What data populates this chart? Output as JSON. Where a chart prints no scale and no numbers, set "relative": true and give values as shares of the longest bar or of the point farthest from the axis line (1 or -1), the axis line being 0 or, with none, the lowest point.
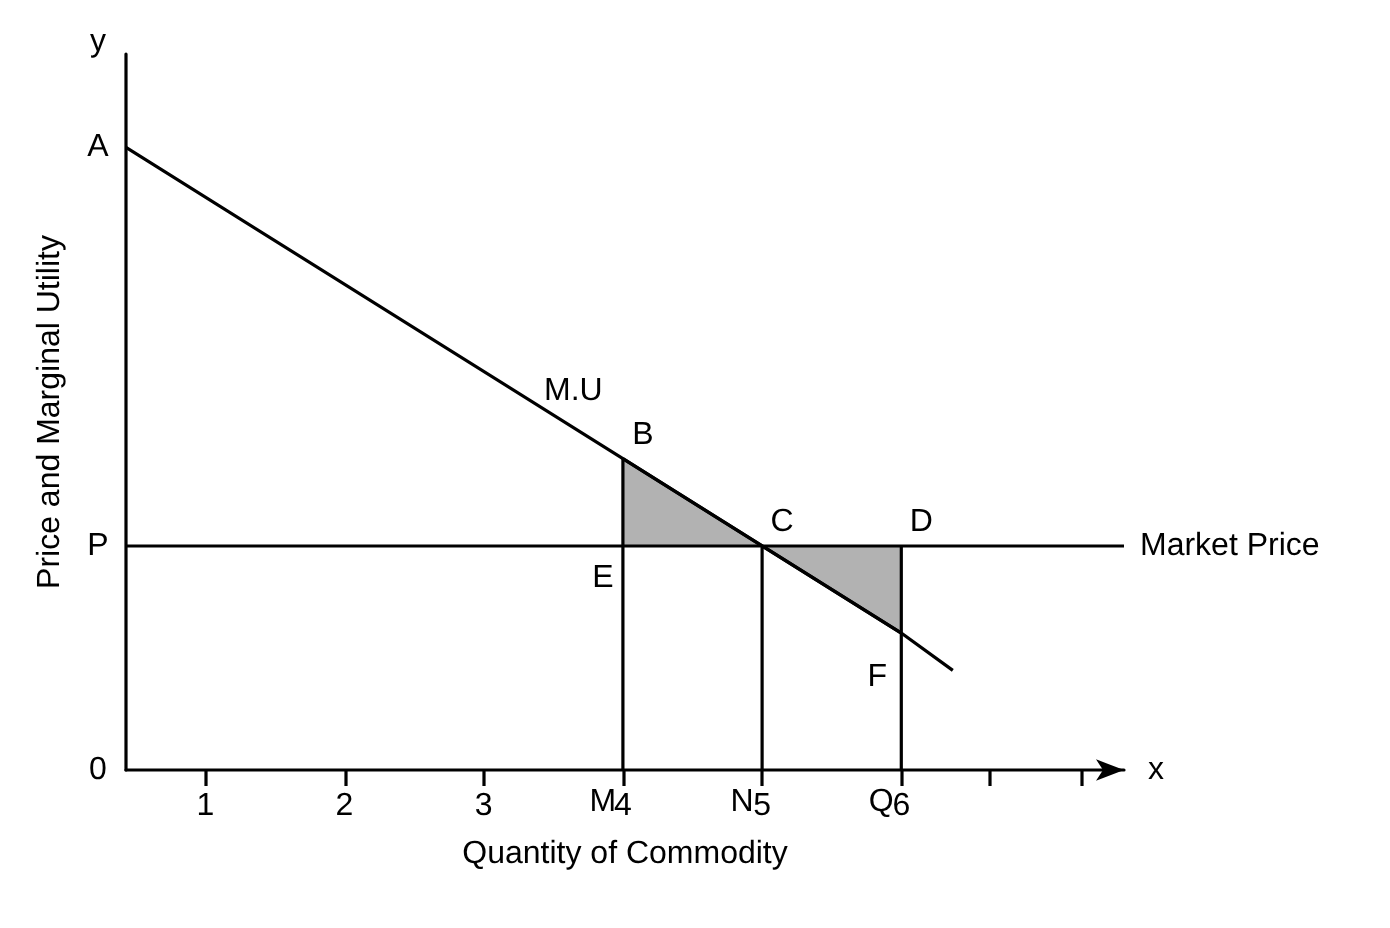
{
  "chart_data": {
    "type": "line",
    "relative": true,
    "xlabel": "Quantity of Commodity",
    "ylabel": "Price and Marginal Utility",
    "xlim": [
      0.43,
      7.6
    ],
    "xticks": [
      1,
      2,
      3,
      4,
      5,
      6,
      {
        "value": 6.64,
        "label": null
      },
      {
        "value": 7.3,
        "label": null
      }
    ],
    "marker": "none",
    "line_style": "solid",
    "series": [
      {
        "color": "#000000",
        "x": [
          0.43,
          4,
          5,
          6,
          6.37
        ],
        "values": [
          1,
          0.5,
          0.36,
          0.22,
          0.16
        ]
      },
      {
        "color": "#000000",
        "x": [
          4,
          4
        ],
        "values": [
          0.5,
          0
        ]
      },
      {
        "color": "#000000",
        "x": [
          5,
          5
        ],
        "values": [
          0.36,
          0
        ]
      },
      {
        "color": "#000000",
        "x": [
          6,
          6
        ],
        "values": [
          0.36,
          0
        ]
      },
      {
        "type": "area",
        "color": "#000000",
        "x": [
          4,
          5
        ],
        "values": [
          0.5,
          0.36
        ]
      },
      {
        "type": "area",
        "color": "#000000",
        "x": [
          5,
          6
        ],
        "values": [
          0.36,
          0.22
        ]
      }
    ],
    "ref_lines": [
      {
        "axis": "y",
        "value": 0.36,
        "label": "Market Price",
        "color": "#000000"
      }
    ],
    "annotations": [
      "y",
      "x",
      "0",
      {
        "text": "A",
        "x": 0.43,
        "y": 1
      },
      {
        "text": "P",
        "x": 0.43,
        "y": 0.36
      },
      {
        "text": "M",
        "x": 4,
        "y": 0
      },
      {
        "text": "N",
        "x": 5,
        "y": 0
      },
      {
        "text": "Q",
        "x": 6,
        "y": 0
      },
      {
        "text": "B",
        "x": 4,
        "y": 0.5
      },
      {
        "text": "C",
        "x": 5,
        "y": 0.36
      },
      {
        "text": "D",
        "x": 6,
        "y": 0.36
      },
      {
        "text": "E",
        "x": 4,
        "y": 0.36
      },
      {
        "text": "F",
        "x": 6,
        "y": 0.22
      },
      {
        "text": "M.U",
        "x": 3.5,
        "y": 0.57
      }
    ]
  }
}
